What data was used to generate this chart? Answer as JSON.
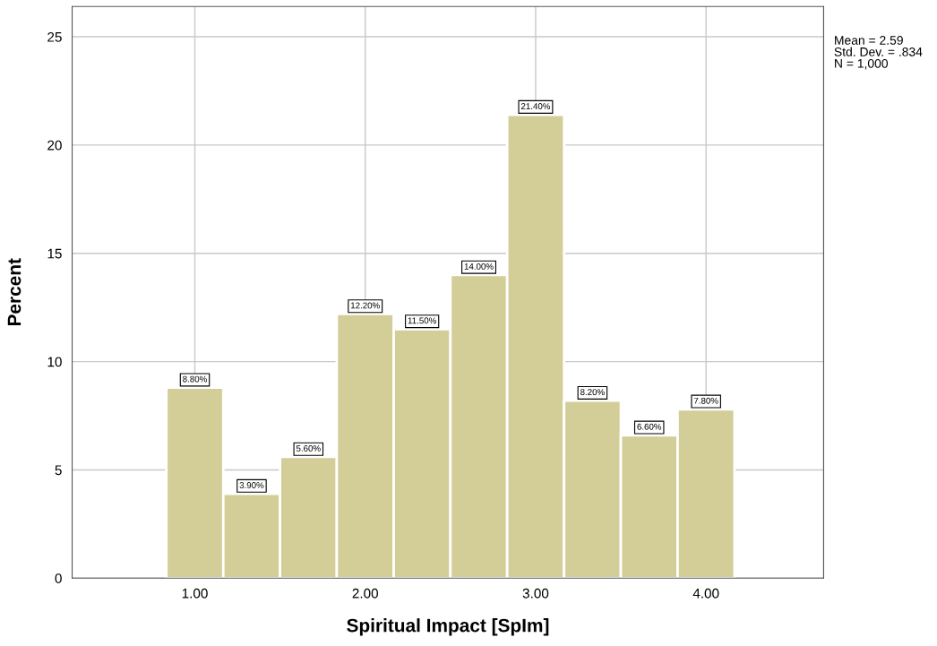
{
  "chart_data": {
    "type": "histogram",
    "xlabel": "Spiritual Impact [SpIm]",
    "ylabel": "Percent",
    "bins": [
      0.833,
      1.167,
      1.5,
      1.833,
      2.167,
      2.5,
      2.833,
      3.167,
      3.5,
      3.833,
      4.167
    ],
    "values": [
      8.8,
      3.9,
      5.6,
      12.2,
      11.5,
      14.0,
      21.4,
      8.2,
      6.6,
      7.8
    ],
    "value_labels": [
      "8.80%",
      "3.90%",
      "5.60%",
      "12.20%",
      "11.50%",
      "14.00%",
      "21.40%",
      "8.20%",
      "6.60%",
      "7.80%"
    ],
    "color": "#d3cd98",
    "xlim": [
      0.28,
      4.69
    ],
    "ylim": [
      0,
      26.4
    ],
    "xticks": [
      {
        "value": 1,
        "label": "1.00"
      },
      {
        "value": 2,
        "label": "2.00"
      },
      {
        "value": 3,
        "label": "3.00"
      },
      {
        "value": 4,
        "label": "4.00"
      }
    ],
    "yticks": [
      0,
      5,
      10,
      15,
      20,
      25
    ],
    "grid": true,
    "annotations": [
      "Mean = 2.59\nStd. Dev. = .834\nN = 1,000"
    ]
  }
}
